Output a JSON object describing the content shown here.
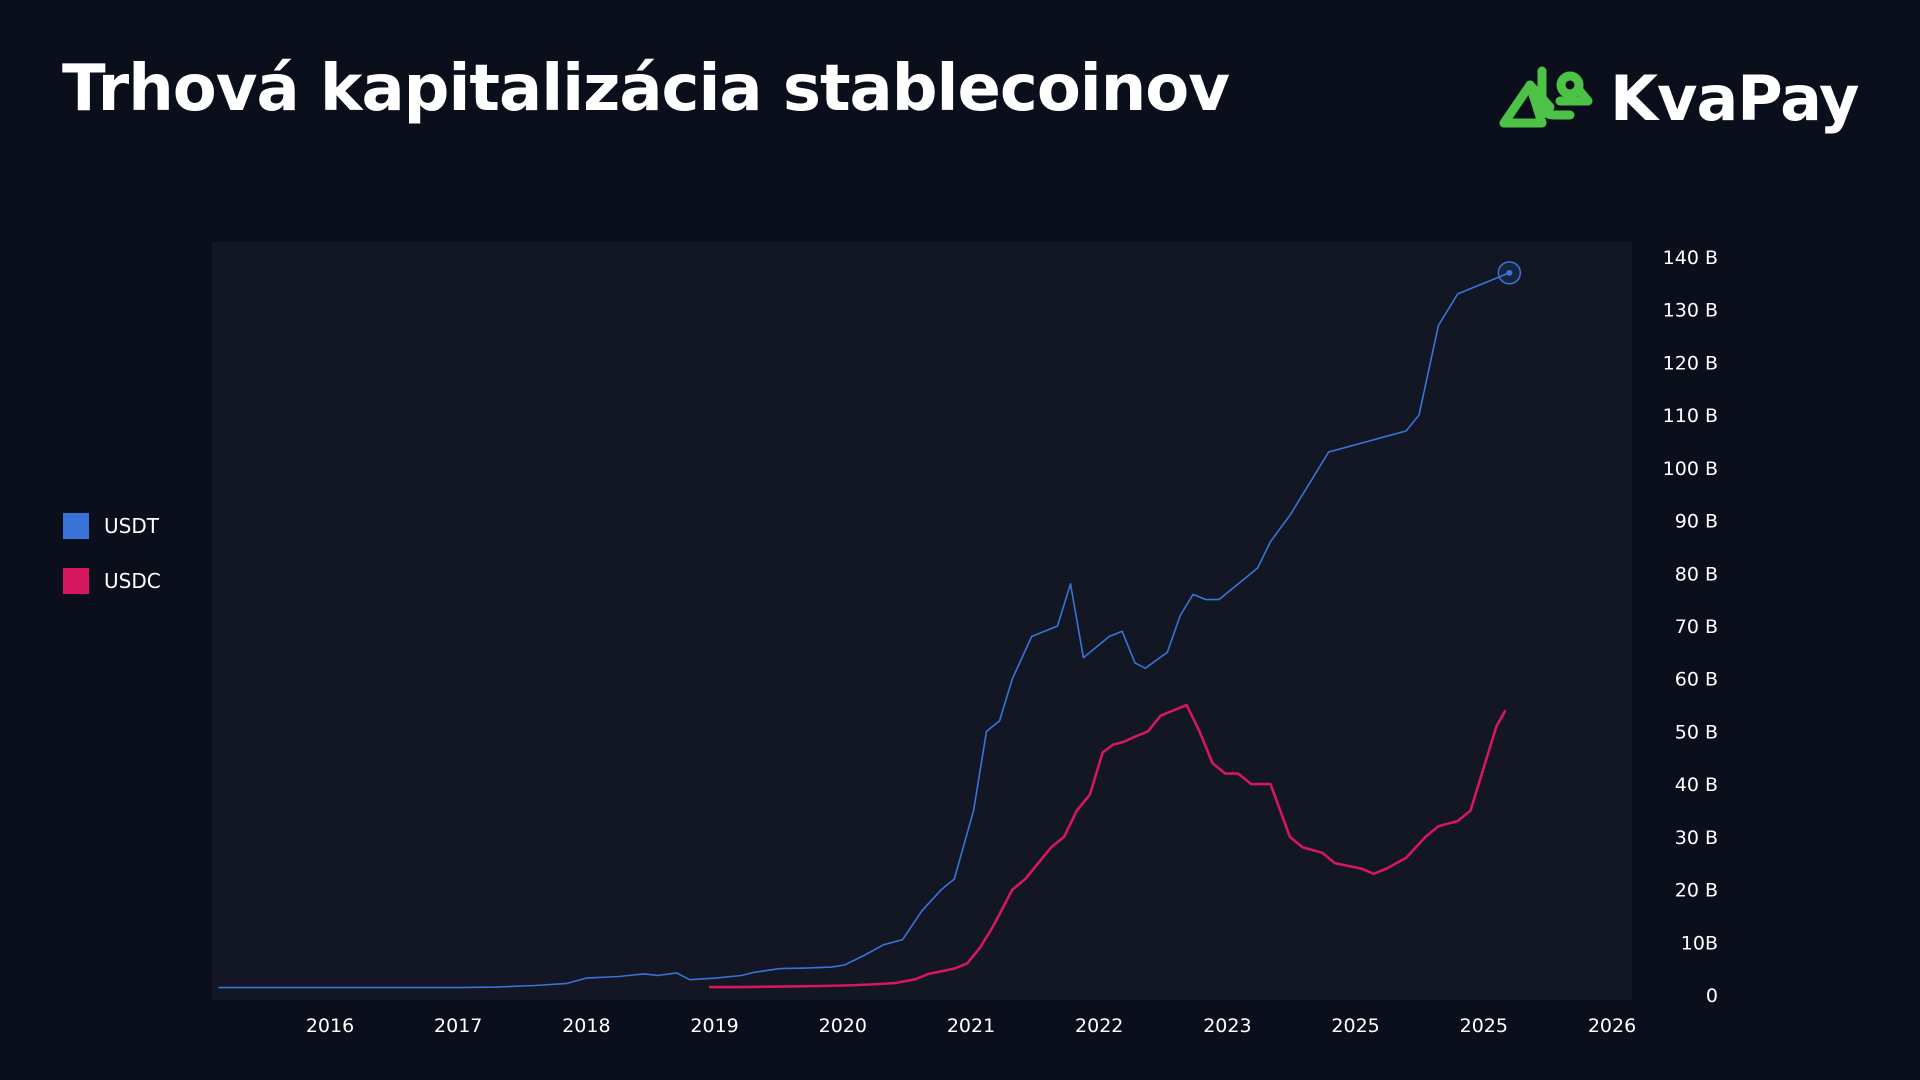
{
  "title": "Trhová kapitalizácia stablecoinov",
  "brand": {
    "name": "KvaPay",
    "icon": "frog-logo-icon",
    "color": "#4cc247"
  },
  "chart_data": {
    "type": "line",
    "title": "Trhová kapitalizácia stablecoinov",
    "xlabel": "",
    "ylabel": "",
    "x_tick_labels": [
      "2016",
      "2017",
      "2018",
      "2019",
      "2020",
      "2021",
      "2022",
      "2023",
      "2025",
      "2025",
      "2026"
    ],
    "y_tick_labels": [
      "0",
      "10B",
      "20 B",
      "30 B",
      "40 B",
      "50 B",
      "60 B",
      "70 B",
      "80 B",
      "90 B",
      "100 B",
      "110 B",
      "120 B",
      "130 B",
      "140 B"
    ],
    "xlim": [
      2015.1,
      2026.1
    ],
    "ylim": [
      0,
      140
    ],
    "y_unit": "B",
    "grid": false,
    "legend_position": "left",
    "series": [
      {
        "name": "USDT",
        "color": "#3a73d8",
        "x": [
          2015.15,
          2015.5,
          2016.0,
          2016.5,
          2017.0,
          2017.3,
          2017.6,
          2017.85,
          2018.0,
          2018.25,
          2018.45,
          2018.55,
          2018.7,
          2018.8,
          2019.0,
          2019.2,
          2019.3,
          2019.5,
          2019.7,
          2019.9,
          2020.0,
          2020.15,
          2020.3,
          2020.45,
          2020.6,
          2020.75,
          2020.85,
          2021.0,
          2021.1,
          2021.2,
          2021.3,
          2021.45,
          2021.55,
          2021.65,
          2021.75,
          2021.85,
          2021.95,
          2022.05,
          2022.15,
          2022.25,
          2022.33,
          2022.5,
          2022.6,
          2022.7,
          2022.8,
          2022.9,
          2023.0,
          2023.1,
          2023.2,
          2023.3,
          2023.45,
          2023.6,
          2023.75,
          2023.9,
          2024.05,
          2024.2,
          2024.35,
          2024.45,
          2024.6,
          2024.75,
          2024.85,
          2024.95,
          2025.05,
          2025.15
        ],
        "values": [
          1.4,
          1.4,
          1.4,
          1.4,
          1.4,
          1.5,
          1.8,
          2.2,
          3.2,
          3.5,
          4.0,
          3.7,
          4.2,
          2.9,
          3.2,
          3.7,
          4.3,
          5.0,
          5.1,
          5.3,
          5.7,
          7.5,
          9.5,
          10.5,
          16,
          20,
          22,
          35,
          50,
          52,
          60,
          68,
          69,
          70,
          78,
          64,
          66,
          68,
          69,
          63,
          62,
          65,
          72,
          76,
          75,
          75,
          77,
          79,
          81,
          86,
          91,
          97,
          103,
          104,
          105,
          106,
          107,
          110,
          127,
          133,
          134,
          135,
          136,
          137
        ]
      },
      {
        "name": "USDC",
        "color": "#d6175e",
        "x": [
          2018.95,
          2019.2,
          2019.5,
          2019.8,
          2020.0,
          2020.2,
          2020.4,
          2020.55,
          2020.65,
          2020.75,
          2020.85,
          2020.95,
          2021.05,
          2021.15,
          2021.3,
          2021.4,
          2021.5,
          2021.6,
          2021.7,
          2021.8,
          2021.9,
          2022.0,
          2022.08,
          2022.16,
          2022.25,
          2022.35,
          2022.45,
          2022.55,
          2022.65,
          2022.75,
          2022.85,
          2022.95,
          2023.05,
          2023.15,
          2023.3,
          2023.45,
          2023.55,
          2023.7,
          2023.8,
          2023.9,
          2024.0,
          2024.1,
          2024.2,
          2024.35,
          2024.5,
          2024.6,
          2024.75,
          2024.85,
          2024.95,
          2025.05,
          2025.12
        ],
        "values": [
          1.5,
          1.5,
          1.6,
          1.7,
          1.8,
          2.0,
          2.3,
          3.0,
          4.0,
          4.5,
          5.0,
          6.0,
          9.0,
          13.0,
          20.0,
          22.0,
          25.0,
          28.0,
          30.0,
          35.0,
          38.0,
          46.0,
          47.5,
          48.0,
          49.0,
          50.0,
          53.0,
          54.0,
          55.0,
          50.0,
          44.0,
          42.0,
          42.0,
          40.0,
          40.0,
          30.0,
          28.0,
          27.0,
          25.0,
          24.5,
          24.0,
          23.0,
          24.0,
          26.0,
          30.0,
          32.0,
          33.0,
          35.0,
          43.0,
          51.0,
          54.0
        ]
      }
    ]
  }
}
